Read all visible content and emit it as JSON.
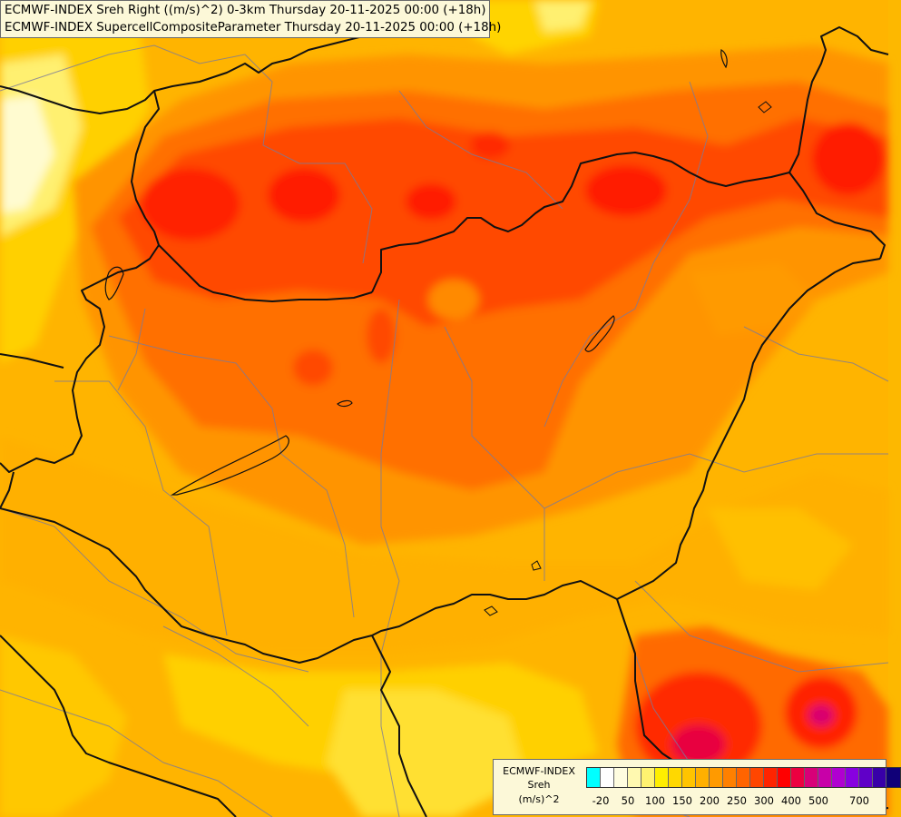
{
  "header": {
    "line1": "ECMWF-INDEX Sreh Right ((m/s)^2) 0-3km Thursday 20-11-2025 00:00 (+18h)",
    "line2": "ECMWF-INDEX SupercellCompositeParameter Thursday 20-11-2025 00:00 (+18h)"
  },
  "legend": {
    "line1": "ECMWF-INDEX",
    "line2": "Sreh",
    "line3": "(m/s)^2",
    "colors": [
      "#00ffff",
      "#ffffff",
      "#fffde0",
      "#fff9b0",
      "#fff270",
      "#ffee00",
      "#ffd800",
      "#ffc400",
      "#ffb000",
      "#ff9a00",
      "#ff8000",
      "#ff6400",
      "#ff4600",
      "#ff2400",
      "#ff0000",
      "#ec0040",
      "#d80078",
      "#c800a8",
      "#b000d0",
      "#8800e0",
      "#6000c8",
      "#3800a8",
      "#100078"
    ],
    "ticks": [
      {
        "label": "-20",
        "index": 1
      },
      {
        "label": "50",
        "index": 3
      },
      {
        "label": "100",
        "index": 5
      },
      {
        "label": "150",
        "index": 7
      },
      {
        "label": "200",
        "index": 9
      },
      {
        "label": "250",
        "index": 11
      },
      {
        "label": "300",
        "index": 13
      },
      {
        "label": "400",
        "index": 15
      },
      {
        "label": "500",
        "index": 17
      },
      {
        "label": "700",
        "index": 20
      }
    ]
  },
  "map_colors": {
    "pale": "#fffac8",
    "light_yellow": "#ffee40",
    "yellow": "#ffd600",
    "gold": "#ffc000",
    "amber": "#ffa800",
    "orange": "#ff8a00",
    "dark_orange": "#ff6400",
    "red_orange": "#ff4000",
    "red": "#ff1a00",
    "crimson": "#f00030",
    "magenta": "#e00070"
  }
}
